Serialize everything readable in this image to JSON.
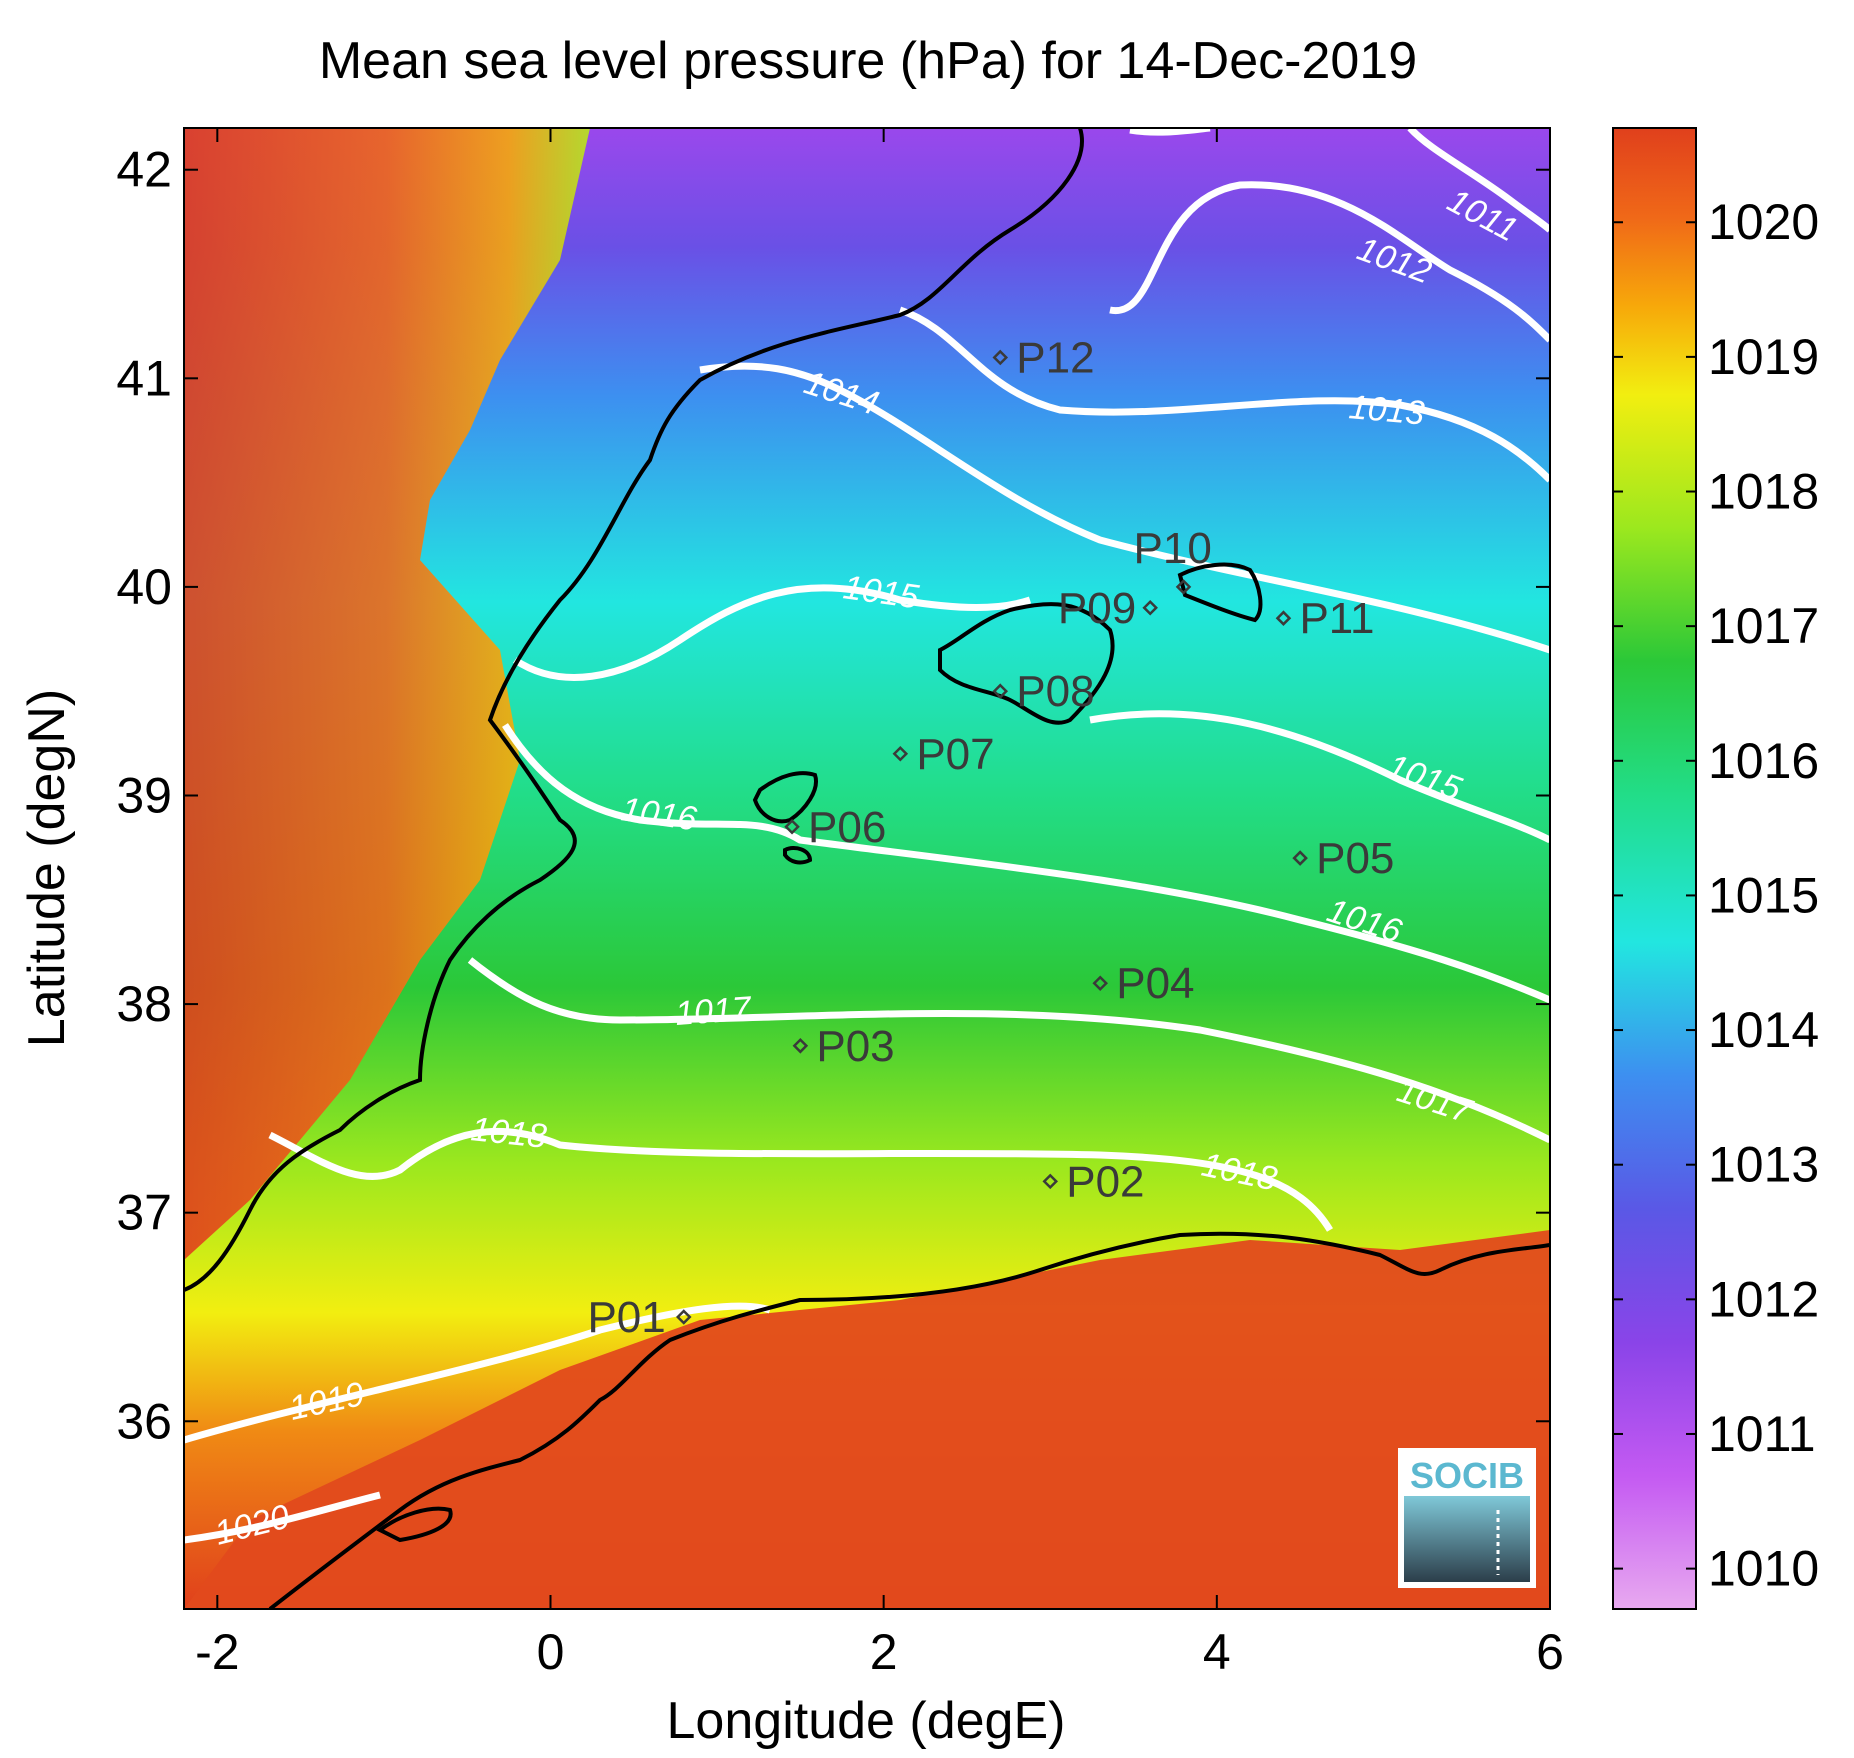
{
  "figure": {
    "title": "Mean sea level pressure (hPa) for 14-Dec-2019",
    "xlabel": "Longitude (degE)",
    "ylabel": "Latitude (degN)"
  },
  "map": {
    "xlim": [
      -2.2,
      6.0
    ],
    "ylim": [
      35.1,
      42.2
    ],
    "x_ticks": [
      "-2",
      "0",
      "2",
      "4",
      "6"
    ],
    "x_tick_values": [
      -2,
      0,
      2,
      4,
      6
    ],
    "y_ticks": [
      "36",
      "37",
      "38",
      "39",
      "40",
      "41",
      "42"
    ],
    "y_tick_values": [
      36,
      37,
      38,
      39,
      40,
      41,
      42
    ],
    "colorbar": {
      "range": [
        1009.7,
        1020.7
      ],
      "ticks": [
        "1010",
        "1011",
        "1012",
        "1013",
        "1014",
        "1015",
        "1016",
        "1017",
        "1018",
        "1019",
        "1020"
      ],
      "tick_values": [
        1010,
        1011,
        1012,
        1013,
        1014,
        1015,
        1016,
        1017,
        1018,
        1019,
        1020
      ],
      "colors": [
        "#e8a9f0",
        "#c45af2",
        "#8a44e8",
        "#5a58e6",
        "#3d8ff0",
        "#22e6e0",
        "#22dd88",
        "#2bc838",
        "#9ce81e",
        "#f2ee10",
        "#f7a80a",
        "#f06818",
        "#e0401c"
      ]
    },
    "contour_labels": [
      "1011",
      "1012",
      "1013",
      "1014",
      "1015",
      "1015",
      "1016",
      "1016",
      "1017",
      "1017",
      "1018",
      "1018",
      "1019",
      "1020"
    ],
    "stations": [
      {
        "id": "P01",
        "lon": 0.8,
        "lat": 36.5
      },
      {
        "id": "P02",
        "lon": 3.0,
        "lat": 37.15
      },
      {
        "id": "P03",
        "lon": 1.5,
        "lat": 37.8
      },
      {
        "id": "P04",
        "lon": 3.3,
        "lat": 38.1
      },
      {
        "id": "P05",
        "lon": 4.5,
        "lat": 38.7
      },
      {
        "id": "P06",
        "lon": 1.45,
        "lat": 38.85
      },
      {
        "id": "P07",
        "lon": 2.1,
        "lat": 39.2
      },
      {
        "id": "P08",
        "lon": 2.7,
        "lat": 39.5
      },
      {
        "id": "P09",
        "lon": 3.6,
        "lat": 39.9
      },
      {
        "id": "P10",
        "lon": 3.8,
        "lat": 40.0
      },
      {
        "id": "P11",
        "lon": 4.4,
        "lat": 39.85
      },
      {
        "id": "P12",
        "lon": 2.7,
        "lat": 41.1
      }
    ],
    "logo_text": "SOCIB"
  }
}
